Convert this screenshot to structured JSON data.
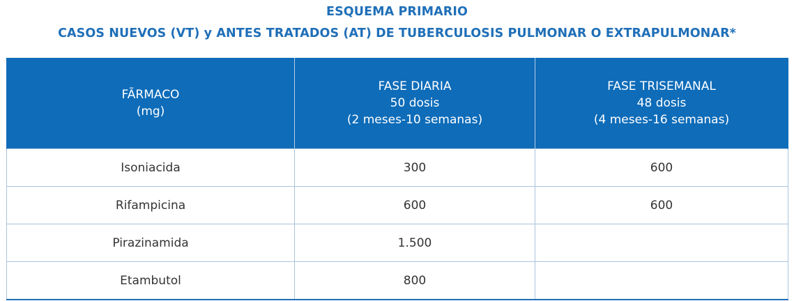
{
  "title": {
    "line1": "ESQUEMA PRIMARIO",
    "line2": "CASOS NUEVOS (VT)  y ANTES TRATADOS (AT) DE TUBERCULOSIS PULMONAR O EXTRAPULMONAR*"
  },
  "colors": {
    "title": "#1f6fb8",
    "header_bg": "#0e6cb9",
    "header_text": "#ffffff",
    "grid_line": "#a9c4de",
    "cell_text": "#333333"
  },
  "table": {
    "headers": [
      {
        "lines": [
          "FÃRMACO",
          "(mg)"
        ]
      },
      {
        "lines": [
          "FASE DIARIA",
          "50 dosis",
          "(2 meses-10 semanas)"
        ]
      },
      {
        "lines": [
          "FASE TRISEMANAL",
          "48 dosis",
          "(4 meses-16 semanas)"
        ]
      }
    ],
    "rows": [
      [
        "Isoniacida",
        "300",
        "600"
      ],
      [
        "Rifampicina",
        "600",
        "600"
      ],
      [
        "Pirazinamida",
        "1.500",
        ""
      ],
      [
        "Etambutol",
        "800",
        ""
      ]
    ]
  }
}
